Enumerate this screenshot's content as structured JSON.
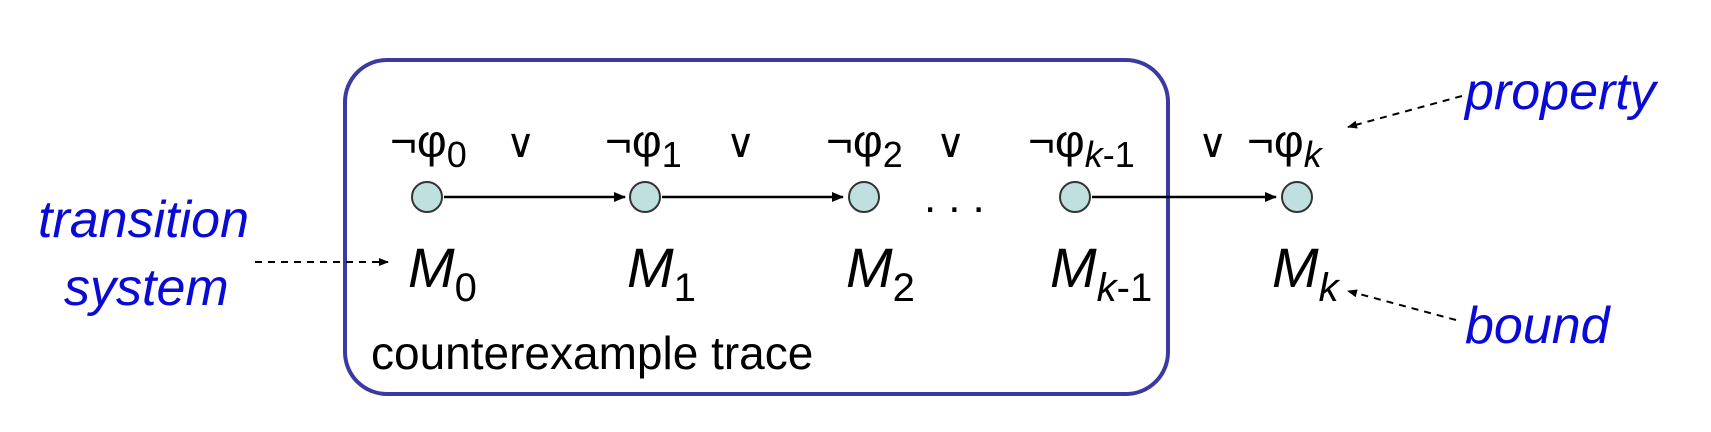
{
  "box": {
    "label": "counterexample trace",
    "border_color": "#3a3aa0"
  },
  "annotations": {
    "transition_line1": "transition",
    "transition_line2": "system",
    "property": "property",
    "bound": "bound",
    "color": "#0a0ad6"
  },
  "states": [
    {
      "neg": "¬φ",
      "sub": "0",
      "sub_italic": "",
      "model": "M",
      "model_sub": "0",
      "model_sub_italic": ""
    },
    {
      "neg": "¬φ",
      "sub": "1",
      "sub_italic": "",
      "model": "M",
      "model_sub": "1",
      "model_sub_italic": ""
    },
    {
      "neg": "¬φ",
      "sub": "2",
      "sub_italic": "",
      "model": "M",
      "model_sub": "2",
      "model_sub_italic": ""
    },
    {
      "neg": "¬φ",
      "sub": "-1",
      "sub_italic": "k",
      "model": "M",
      "model_sub": "-1",
      "model_sub_italic": "k"
    },
    {
      "neg": "¬φ",
      "sub": "",
      "sub_italic": "k",
      "model": "M",
      "model_sub": "",
      "model_sub_italic": "k"
    }
  ],
  "or_symbol": "∨",
  "ellipsis": "...",
  "node_fill": "#bfe0df"
}
